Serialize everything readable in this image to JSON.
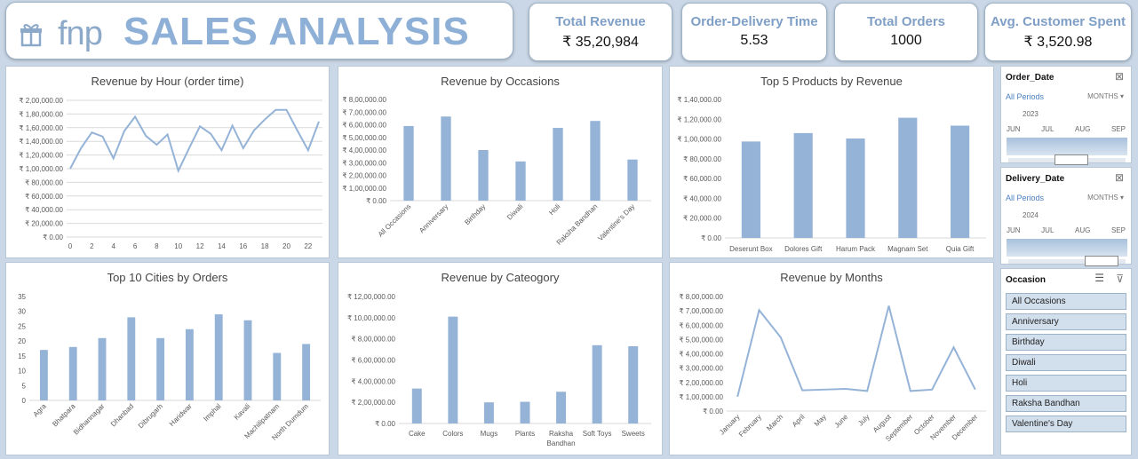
{
  "header": {
    "logo_text": "fnp",
    "title": "SALES ANALYSIS"
  },
  "kpis": [
    {
      "title": "Total Revenue",
      "value": "₹ 35,20,984"
    },
    {
      "title": "Order-Delivery Time",
      "value": "5.53"
    },
    {
      "title": "Total Orders",
      "value": "1000"
    },
    {
      "title": "Avg. Customer Spent",
      "value": "₹ 3,520.98"
    }
  ],
  "slicers": {
    "order_date": {
      "title": "Order_Date",
      "periods_label": "All Periods",
      "level": "MONTHS ▾",
      "year": "2023",
      "months": [
        "JUN",
        "JUL",
        "AUG",
        "SEP"
      ],
      "filter_icon": "clear-filter-icon"
    },
    "delivery_date": {
      "title": "Delivery_Date",
      "periods_label": "All Periods",
      "level": "MONTHS ▾",
      "year": "2024",
      "months": [
        "JUN",
        "JUL",
        "AUG",
        "SEP"
      ],
      "filter_icon": "clear-filter-icon"
    },
    "occasion": {
      "title": "Occasion",
      "items": [
        "All Occasions",
        "Anniversary",
        "Birthday",
        "Diwali",
        "Holi",
        "Raksha Bandhan",
        "Valentine's Day"
      ],
      "multiselect_icon": "multi-select-icon",
      "filter_icon": "clear-filter-icon"
    }
  },
  "colors": {
    "series": "#95b3d7",
    "grid": "#d9d9d9",
    "axis_text": "#595959"
  },
  "chart_data": [
    {
      "id": "hour",
      "type": "line",
      "title": "Revenue by Hour (order time)",
      "x": [
        0,
        1,
        2,
        3,
        4,
        5,
        6,
        7,
        8,
        9,
        10,
        11,
        12,
        13,
        14,
        15,
        16,
        17,
        18,
        19,
        20,
        21,
        22,
        23
      ],
      "values": [
        100000,
        130000,
        153000,
        147000,
        115000,
        155000,
        176000,
        148000,
        135000,
        150000,
        97000,
        130000,
        162000,
        151000,
        127000,
        163000,
        130000,
        156000,
        172000,
        186000,
        186000,
        156000,
        127000,
        169000
      ],
      "x_tick_labels": [
        "0",
        "2",
        "4",
        "6",
        "8",
        "10",
        "12",
        "14",
        "16",
        "18",
        "20",
        "22"
      ],
      "x_tick_values": [
        0,
        2,
        4,
        6,
        8,
        10,
        12,
        14,
        16,
        18,
        20,
        22
      ],
      "y_ticks": [
        0,
        20000,
        40000,
        60000,
        80000,
        100000,
        120000,
        140000,
        160000,
        180000,
        200000
      ],
      "y_tick_labels": [
        "₹ 0.00",
        "₹ 20,000.00",
        "₹ 40,000.00",
        "₹ 60,000.00",
        "₹ 80,000.00",
        "₹ 1,00,000.00",
        "₹ 1,20,000.00",
        "₹ 1,40,000.00",
        "₹ 1,60,000.00",
        "₹ 1,80,000.00",
        "₹ 2,00,000.00"
      ],
      "ylim": [
        0,
        200000
      ],
      "grid": true
    },
    {
      "id": "occasions",
      "type": "bar",
      "title": "Revenue by Occasions",
      "categories": [
        "All Occasions",
        "Anniversary",
        "Birthday",
        "Diwali",
        "Holi",
        "Raksha Bandhan",
        "Valentine's Day"
      ],
      "values": [
        590000,
        665000,
        400000,
        310000,
        575000,
        630000,
        325000
      ],
      "y_ticks": [
        0,
        100000,
        200000,
        300000,
        400000,
        500000,
        600000,
        700000,
        800000
      ],
      "y_tick_labels": [
        "₹ 0.00",
        "₹ 1,00,000.00",
        "₹ 2,00,000.00",
        "₹ 3,00,000.00",
        "₹ 4,00,000.00",
        "₹ 5,00,000.00",
        "₹ 6,00,000.00",
        "₹ 7,00,000.00",
        "₹ 8,00,000.00"
      ],
      "ylim": [
        0,
        800000
      ],
      "grid": false
    },
    {
      "id": "products",
      "type": "bar",
      "title": "Top 5 Products by Revenue",
      "categories": [
        "Deserunt Box",
        "Dolores Gift",
        "Harum Pack",
        "Magnam Set",
        "Quia Gift"
      ],
      "values": [
        97500,
        106000,
        100500,
        121500,
        113500
      ],
      "y_ticks": [
        0,
        20000,
        40000,
        60000,
        80000,
        100000,
        120000,
        140000
      ],
      "y_tick_labels": [
        "₹ 0.00",
        "₹ 20,000.00",
        "₹ 40,000.00",
        "₹ 60,000.00",
        "₹ 80,000.00",
        "₹ 1,00,000.00",
        "₹ 1,20,000.00",
        "₹ 1,40,000.00"
      ],
      "ylim": [
        0,
        140000
      ],
      "grid": false
    },
    {
      "id": "cities",
      "type": "bar",
      "title": "Top 10 Cities by Orders",
      "categories": [
        "Agra",
        "Bhatpara",
        "Bidhannagar",
        "Dhanbad",
        "Dibrugarh",
        "Haridwar",
        "Imphal",
        "Kavali",
        "Machilipatnam",
        "North Dumdum"
      ],
      "values": [
        17,
        18,
        21,
        28,
        21,
        24,
        29,
        27,
        16,
        19
      ],
      "y_ticks": [
        0,
        5,
        10,
        15,
        20,
        25,
        30,
        35
      ],
      "y_tick_labels": [
        "0",
        "5",
        "10",
        "15",
        "20",
        "25",
        "30",
        "35"
      ],
      "ylim": [
        0,
        35
      ],
      "grid": false
    },
    {
      "id": "category",
      "type": "bar",
      "title": "Revenue by Cateogory",
      "categories": [
        "Cake",
        "Colors",
        "Mugs",
        "Plants",
        "Raksha Bandhan",
        "Soft Toys",
        "Sweets"
      ],
      "values": [
        330000,
        1010000,
        200000,
        205000,
        300000,
        740000,
        730000
      ],
      "y_ticks": [
        0,
        200000,
        400000,
        600000,
        800000,
        1000000,
        1200000
      ],
      "y_tick_labels": [
        "₹ 0.00",
        "₹ 2,00,000.00",
        "₹ 4,00,000.00",
        "₹ 6,00,000.00",
        "₹ 8,00,000.00",
        "₹ 10,00,000.00",
        "₹ 12,00,000.00"
      ],
      "ylim": [
        0,
        1200000
      ],
      "grid": false
    },
    {
      "id": "months",
      "type": "line",
      "title": "Revenue by Months",
      "categories": [
        "January",
        "February",
        "March",
        "April",
        "May",
        "June",
        "July",
        "August",
        "September",
        "October",
        "November",
        "December"
      ],
      "values": [
        100000,
        705000,
        515000,
        145000,
        150000,
        155000,
        140000,
        735000,
        140000,
        150000,
        445000,
        150000
      ],
      "y_ticks": [
        0,
        100000,
        200000,
        300000,
        400000,
        500000,
        600000,
        700000,
        800000
      ],
      "y_tick_labels": [
        "₹ 0.00",
        "₹ 1,00,000.00",
        "₹ 2,00,000.00",
        "₹ 3,00,000.00",
        "₹ 4,00,000.00",
        "₹ 5,00,000.00",
        "₹ 6,00,000.00",
        "₹ 7,00,000.00",
        "₹ 8,00,000.00"
      ],
      "ylim": [
        0,
        800000
      ],
      "grid": false
    }
  ]
}
